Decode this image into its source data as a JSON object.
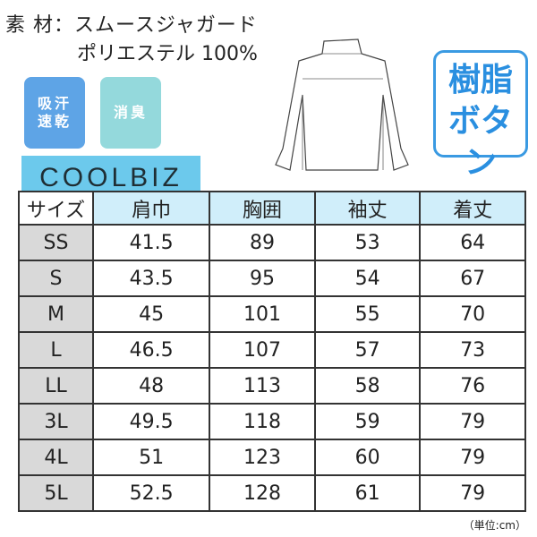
{
  "material": {
    "line1": "素 材：スムースジャガード",
    "line2": "ポリエステル 100%"
  },
  "badges": [
    {
      "label": "吸汗\n速乾",
      "color": "#5ea4e6"
    },
    {
      "label": "消臭",
      "color": "#94d9dc"
    }
  ],
  "coolbiz": "COOLBIZ",
  "resin_button": {
    "line1": "樹脂",
    "line2": "ボタン"
  },
  "table": {
    "headers": [
      "サイズ",
      "肩巾",
      "胸囲",
      "袖丈",
      "着丈"
    ],
    "rows": [
      [
        "SS",
        "41.5",
        "89",
        "53",
        "64"
      ],
      [
        "S",
        "43.5",
        "95",
        "54",
        "67"
      ],
      [
        "M",
        "45",
        "101",
        "55",
        "70"
      ],
      [
        "L",
        "46.5",
        "107",
        "57",
        "73"
      ],
      [
        "LL",
        "48",
        "113",
        "58",
        "76"
      ],
      [
        "3L",
        "49.5",
        "118",
        "59",
        "79"
      ],
      [
        "4L",
        "51",
        "123",
        "60",
        "79"
      ],
      [
        "5L",
        "52.5",
        "128",
        "61",
        "79"
      ]
    ]
  },
  "unit": "（単位:cm）"
}
